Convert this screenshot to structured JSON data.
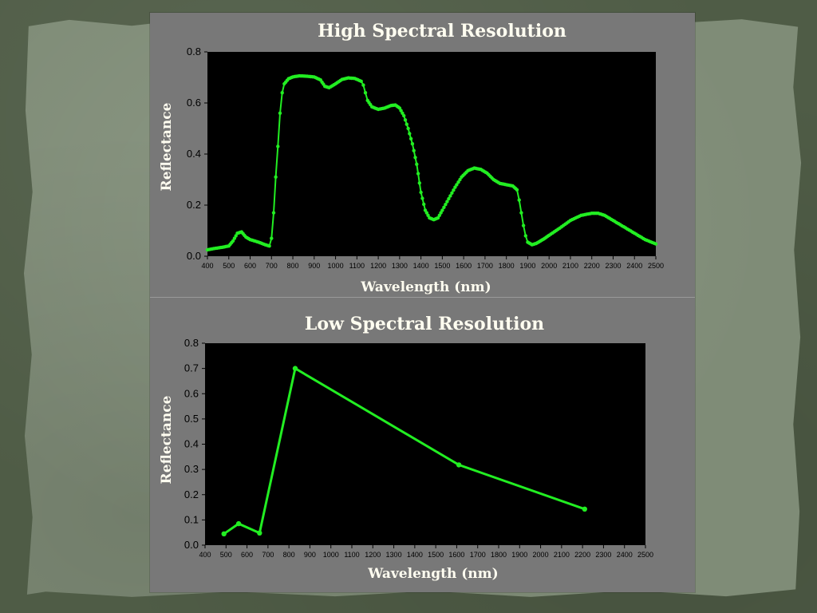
{
  "chart_data": [
    {
      "type": "scatter",
      "title": "High Spectral Resolution",
      "xlabel": "Wavelength (nm)",
      "ylabel": "Reflectance",
      "xlim": [
        400,
        2500
      ],
      "ylim": [
        0,
        0.8
      ],
      "xticks": [
        400,
        500,
        600,
        700,
        800,
        900,
        1000,
        1100,
        1200,
        1300,
        1400,
        1500,
        1600,
        1700,
        1800,
        1900,
        2000,
        2100,
        2200,
        2300,
        2400,
        2500
      ],
      "yticks": [
        0.0,
        0.2,
        0.4,
        0.6,
        0.8
      ],
      "ytick_labels": [
        "0.0",
        "0.2",
        "0.4",
        "0.6",
        "0.8"
      ],
      "grid": false,
      "color": "#22ee22",
      "series": [
        {
          "x": [
            400,
            430,
            470,
            500,
            520,
            540,
            560,
            580,
            600,
            640,
            670,
            690,
            700,
            710,
            720,
            730,
            740,
            750,
            760,
            780,
            800,
            830,
            860,
            900,
            930,
            950,
            970,
            1000,
            1030,
            1060,
            1090,
            1120,
            1130,
            1140,
            1150,
            1170,
            1200,
            1230,
            1260,
            1280,
            1300,
            1320,
            1340,
            1360,
            1380,
            1400,
            1420,
            1440,
            1460,
            1480,
            1500,
            1530,
            1560,
            1590,
            1620,
            1650,
            1680,
            1710,
            1740,
            1770,
            1800,
            1830,
            1850,
            1860,
            1870,
            1880,
            1890,
            1900,
            1920,
            1940,
            1960,
            1980,
            2000,
            2050,
            2100,
            2150,
            2200,
            2230,
            2260,
            2300,
            2350,
            2400,
            2450,
            2500
          ],
          "y": [
            0.025,
            0.03,
            0.035,
            0.04,
            0.06,
            0.09,
            0.095,
            0.075,
            0.065,
            0.055,
            0.045,
            0.04,
            0.07,
            0.17,
            0.31,
            0.43,
            0.56,
            0.64,
            0.675,
            0.695,
            0.702,
            0.706,
            0.705,
            0.702,
            0.69,
            0.665,
            0.66,
            0.675,
            0.692,
            0.698,
            0.696,
            0.685,
            0.67,
            0.64,
            0.61,
            0.585,
            0.575,
            0.58,
            0.59,
            0.592,
            0.58,
            0.55,
            0.5,
            0.44,
            0.36,
            0.25,
            0.18,
            0.15,
            0.143,
            0.15,
            0.18,
            0.225,
            0.27,
            0.31,
            0.335,
            0.345,
            0.34,
            0.325,
            0.3,
            0.285,
            0.28,
            0.275,
            0.26,
            0.22,
            0.17,
            0.12,
            0.08,
            0.055,
            0.045,
            0.05,
            0.06,
            0.07,
            0.082,
            0.11,
            0.14,
            0.16,
            0.168,
            0.168,
            0.16,
            0.14,
            0.115,
            0.09,
            0.065,
            0.048
          ]
        }
      ]
    },
    {
      "type": "line",
      "title": "Low Spectral Resolution",
      "xlabel": "Wavelength (nm)",
      "ylabel": "Reflectance",
      "xlim": [
        400,
        2500
      ],
      "ylim": [
        0,
        0.8
      ],
      "xticks": [
        400,
        500,
        600,
        700,
        800,
        900,
        1000,
        1100,
        1200,
        1300,
        1400,
        1500,
        1600,
        1700,
        1800,
        1900,
        2000,
        2100,
        2200,
        2300,
        2400,
        2500
      ],
      "yticks": [
        0.0,
        0.1,
        0.2,
        0.3,
        0.4,
        0.5,
        0.6,
        0.7,
        0.8
      ],
      "ytick_labels": [
        "0.0",
        "0.1",
        "0.2",
        "0.3",
        "0.4",
        "0.5",
        "0.6",
        "0.7",
        "0.8"
      ],
      "grid": false,
      "color": "#22ee22",
      "series": [
        {
          "x": [
            490,
            560,
            660,
            830,
            1610,
            2210
          ],
          "y": [
            0.045,
            0.085,
            0.048,
            0.7,
            0.318,
            0.143
          ]
        }
      ]
    }
  ],
  "colors": {
    "panel": "#787878",
    "plot_area": "#000000",
    "data": "#22ee22",
    "title_text": "#fffdf0"
  }
}
